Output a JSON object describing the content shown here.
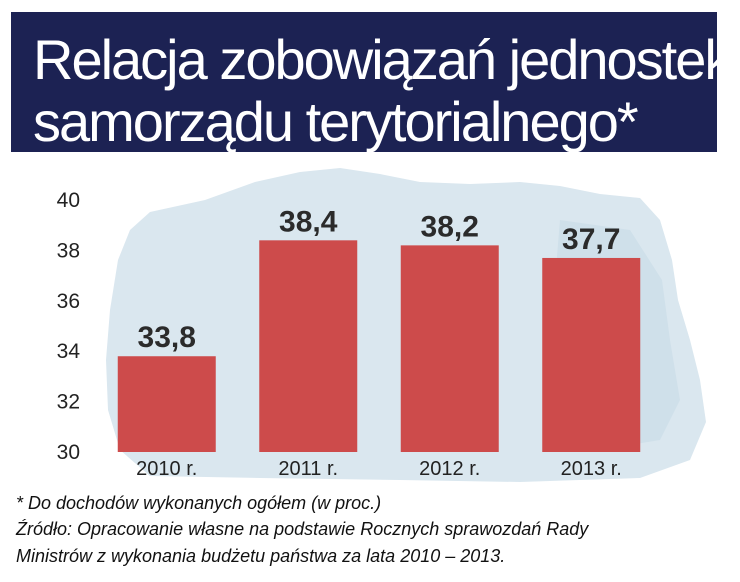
{
  "title": {
    "line1": "Relacja zobowiązań jednostek",
    "line2": "samorządu terytorialnego*"
  },
  "chart_data": {
    "type": "bar",
    "categories": [
      "2010 r.",
      "2011 r.",
      "2012 r.",
      "2013 r."
    ],
    "values": [
      33.8,
      38.4,
      38.2,
      37.7
    ],
    "value_labels": [
      "33,8",
      "38,4",
      "38,2",
      "37,7"
    ],
    "ylim": [
      30,
      40
    ],
    "yticks": [
      "30",
      "32",
      "34",
      "36",
      "38",
      "40"
    ],
    "ytick_values": [
      30,
      32,
      34,
      36,
      38,
      40
    ],
    "bar_color": "#cd4b4b",
    "grid": false
  },
  "footnotes": {
    "note": "* Do dochodów wykonanych ogółem (w proc.)",
    "source_line1": "Źródło: Opracowanie własne na podstawie Rocznych sprawozdań Rady",
    "source_line2": "Ministrów z wykonania budżetu państwa za lata 2010 – 2013."
  },
  "colors": {
    "title_background": "#1c2253",
    "title_text": "#ffffff",
    "map_background": "#d4e4ee"
  }
}
